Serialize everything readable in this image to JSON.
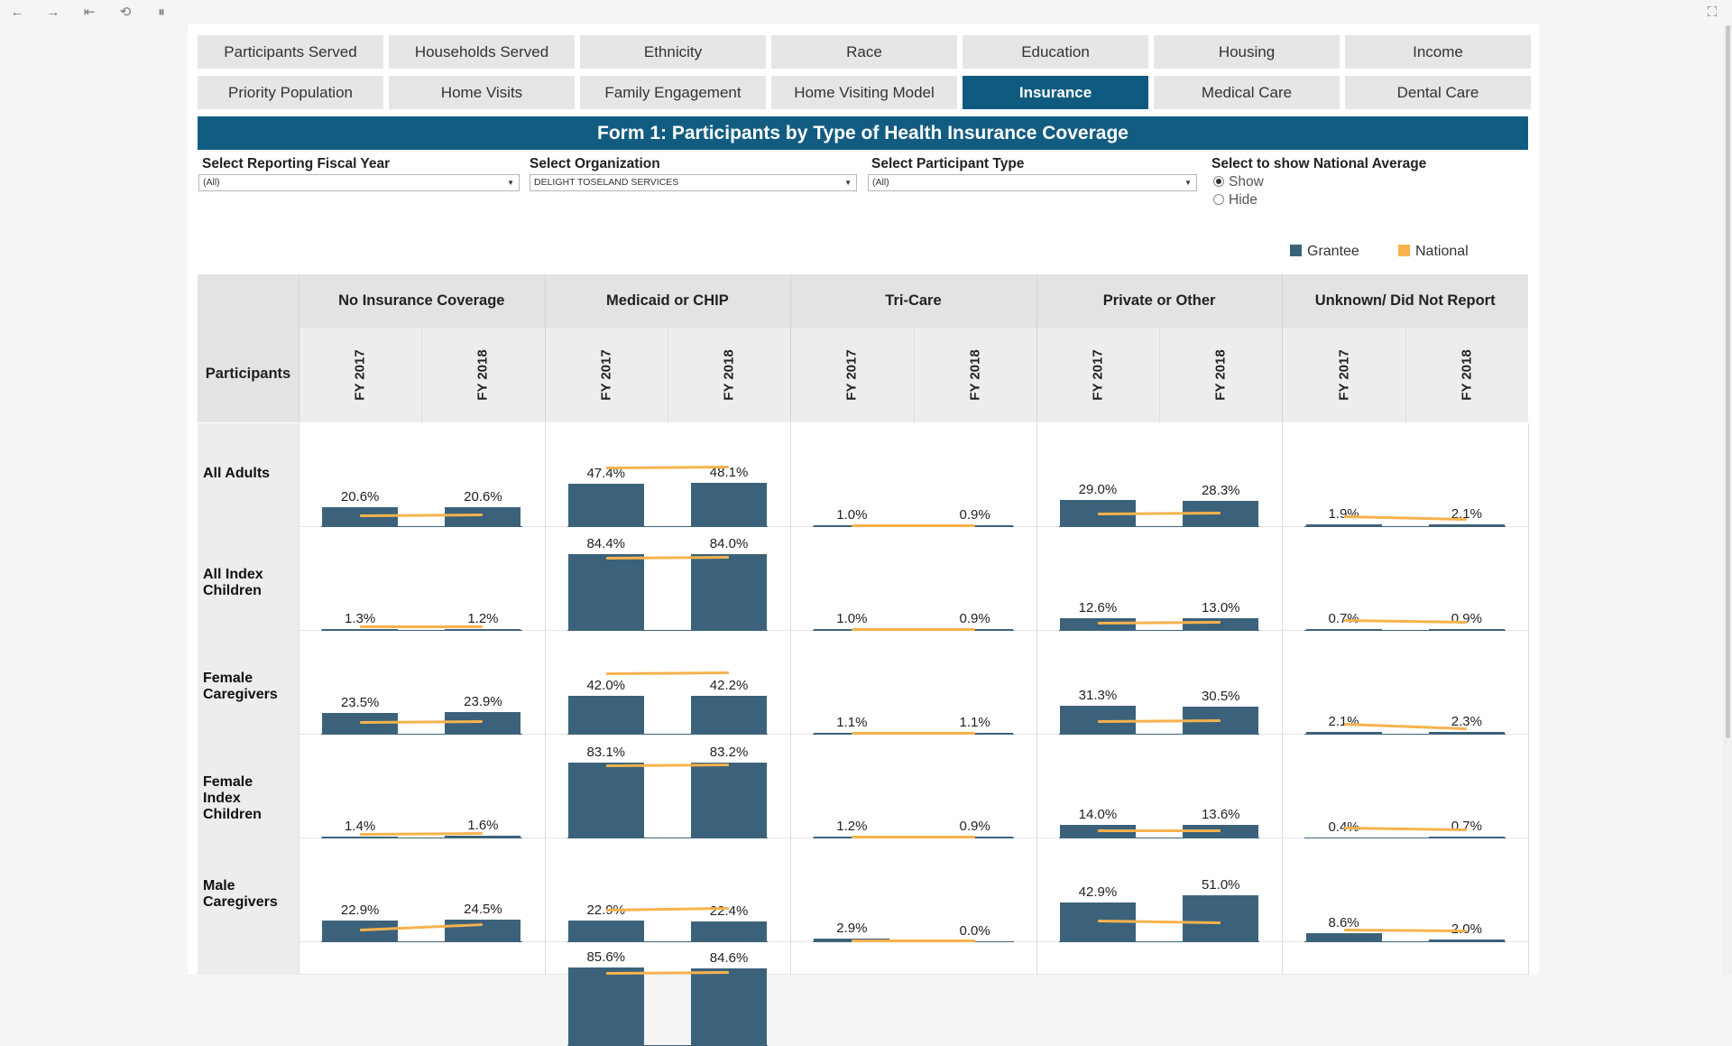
{
  "toolbar": {
    "back": "←",
    "forward": "→",
    "first": "⇤",
    "revert": "⟲",
    "pause": "⏸",
    "fullscreen": "⛶"
  },
  "tabs_row1": [
    "Participants Served",
    "Households Served",
    "Ethnicity",
    "Race",
    "Education",
    "Housing",
    "Income"
  ],
  "tabs_row2": [
    "Priority Population",
    "Home Visits",
    "Family Engagement",
    "Home Visiting Model",
    "Insurance",
    "Medical Care",
    "Dental Care"
  ],
  "active_tab": "Insurance",
  "banner_title": "Form 1: Participants by Type of Health Insurance Coverage",
  "filters": {
    "year": {
      "label": "Select Reporting Fiscal Year",
      "value": "(All)"
    },
    "org": {
      "label": "Select Organization",
      "value": "DELIGHT TOSELAND SERVICES"
    },
    "ptype": {
      "label": "Select Participant Type",
      "value": "(All)"
    },
    "national": {
      "label": "Select to show National Average",
      "options": [
        "Show",
        "Hide"
      ],
      "selected": "Show"
    }
  },
  "legend": {
    "grantee": "Grantee",
    "national": "National"
  },
  "colors": {
    "grantee": "#3c627b",
    "national": "#f7b24d",
    "banner": "#125c82",
    "active_tab": "#0f5b80"
  },
  "table": {
    "row_header": "Participants",
    "categories": [
      "No Insurance Coverage",
      "Medicaid or CHIP",
      "Tri-Care",
      "Private or Other",
      "Unknown/ Did Not Report"
    ],
    "years": [
      "FY 2017",
      "FY 2018"
    ]
  },
  "chart_data": {
    "type": "bar",
    "title": "Form 1: Participants by Type of Health Insurance Coverage",
    "categories": [
      "No Insurance Coverage",
      "Medicaid or CHIP",
      "Tri-Care",
      "Private or Other",
      "Unknown/ Did Not Report"
    ],
    "x": [
      "FY 2017",
      "FY 2018"
    ],
    "ylim": [
      0,
      100
    ],
    "rows": [
      {
        "name": "All Adults",
        "grantee": [
          [
            20.6,
            20.6
          ],
          [
            47.4,
            48.1
          ],
          [
            1.0,
            0.9
          ],
          [
            29.0,
            28.3
          ],
          [
            1.9,
            2.1
          ]
        ],
        "grantee_labels": [
          [
            "20.6%",
            "20.6%"
          ],
          [
            "47.4%",
            "48.1%"
          ],
          [
            "1.0%",
            "0.9%"
          ],
          [
            "29.0%",
            "28.3%"
          ],
          [
            "1.9%",
            "2.1%"
          ]
        ],
        "national": [
          [
            12,
            13
          ],
          [
            65,
            66
          ],
          [
            1.0,
            1.0
          ],
          [
            14,
            15
          ],
          [
            11,
            8
          ]
        ]
      },
      {
        "name": "All Index Children",
        "grantee": [
          [
            1.3,
            1.2
          ],
          [
            84.4,
            84.0
          ],
          [
            1.0,
            0.9
          ],
          [
            12.6,
            13.0
          ],
          [
            0.7,
            0.9
          ]
        ],
        "grantee_labels": [
          [
            "1.3%",
            "1.2%"
          ],
          [
            "84.4%",
            "84.0%"
          ],
          [
            "1.0%",
            "0.9%"
          ],
          [
            "12.6%",
            "13.0%"
          ],
          [
            "0.7%",
            "0.9%"
          ]
        ],
        "national": [
          [
            4,
            4
          ],
          [
            80,
            81
          ],
          [
            1.0,
            1.0
          ],
          [
            8,
            9
          ],
          [
            11,
            9
          ]
        ]
      },
      {
        "name": "Female Caregivers",
        "grantee": [
          [
            23.5,
            23.9
          ],
          [
            42.0,
            42.2
          ],
          [
            1.1,
            1.1
          ],
          [
            31.3,
            30.5
          ],
          [
            2.1,
            2.3
          ]
        ],
        "grantee_labels": [
          [
            "23.5%",
            "23.9%"
          ],
          [
            "42.0%",
            "42.2%"
          ],
          [
            "1.1%",
            "1.1%"
          ],
          [
            "31.3%",
            "30.5%"
          ],
          [
            "2.1%",
            "2.3%"
          ]
        ],
        "national": [
          [
            13,
            14
          ],
          [
            67,
            68
          ],
          [
            1.0,
            1.0
          ],
          [
            14,
            15
          ],
          [
            11,
            6
          ]
        ]
      },
      {
        "name": "Female Index Children",
        "grantee": [
          [
            1.4,
            1.6
          ],
          [
            83.1,
            83.2
          ],
          [
            1.2,
            0.9
          ],
          [
            14.0,
            13.6
          ],
          [
            0.4,
            0.7
          ]
        ],
        "grantee_labels": [
          [
            "1.4%",
            "1.6%"
          ],
          [
            "83.1%",
            "83.2%"
          ],
          [
            "1.2%",
            "0.9%"
          ],
          [
            "14.0%",
            "13.6%"
          ],
          [
            "0.4%",
            "0.7%"
          ]
        ],
        "national": [
          [
            4,
            5
          ],
          [
            80,
            81
          ],
          [
            1.0,
            1.0
          ],
          [
            8,
            8
          ],
          [
            11,
            9
          ]
        ]
      },
      {
        "name": "Male Caregivers",
        "grantee": [
          [
            22.9,
            24.5
          ],
          [
            22.9,
            22.4
          ],
          [
            2.9,
            0.0
          ],
          [
            42.9,
            51.0
          ],
          [
            8.6,
            2.0
          ]
        ],
        "grantee_labels": [
          [
            "22.9%",
            "24.5%"
          ],
          [
            "22.9%",
            "22.4%"
          ],
          [
            "2.9%",
            "0.0%"
          ],
          [
            "42.9%",
            "51.0%"
          ],
          [
            "8.6%",
            "2.0%"
          ]
        ],
        "national": [
          [
            13,
            19
          ],
          [
            35,
            37
          ],
          [
            1.0,
            1.0
          ],
          [
            23,
            21
          ],
          [
            13,
            12
          ]
        ]
      },
      {
        "name": "",
        "grantee": [
          [
            null,
            null
          ],
          [
            85.6,
            84.6
          ],
          [
            null,
            null
          ],
          [
            null,
            null
          ],
          [
            null,
            null
          ]
        ],
        "grantee_labels": [
          [
            "",
            ""
          ],
          [
            "85.6%",
            "84.6%"
          ],
          [
            "",
            ""
          ],
          [
            "",
            ""
          ],
          [
            "",
            ""
          ]
        ],
        "national": [
          [
            null,
            null
          ],
          [
            80,
            81
          ],
          [
            null,
            null
          ],
          [
            null,
            null
          ],
          [
            null,
            null
          ]
        ]
      }
    ]
  }
}
